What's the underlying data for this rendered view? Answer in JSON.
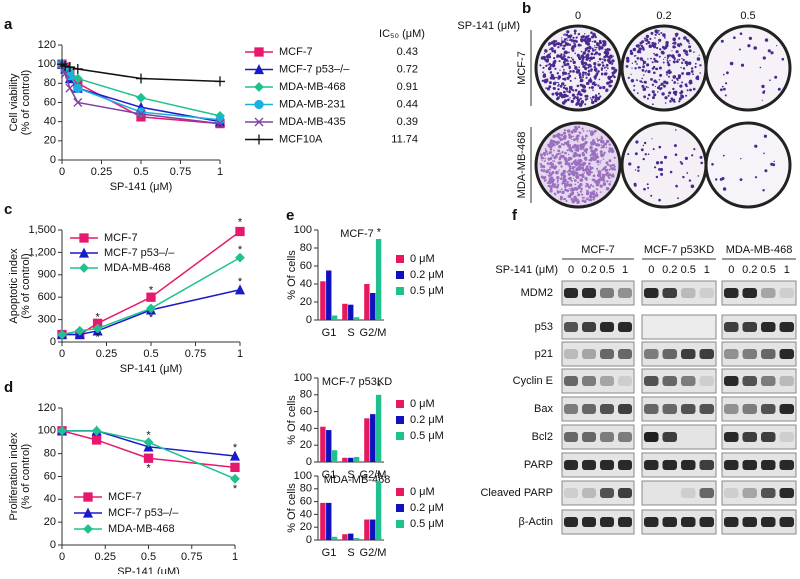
{
  "chart_data": [
    {
      "type": "line",
      "panel": "a",
      "xlabel": "SP-141 (μM)",
      "ylabel": [
        "Cell viability",
        "(% of control)"
      ],
      "x": [
        0,
        0.02,
        0.05,
        0.1,
        0.5,
        1
      ],
      "xlim": [
        0,
        1
      ],
      "xticks": [
        0,
        0.25,
        0.5,
        0.75,
        1
      ],
      "ylim": [
        0,
        120
      ],
      "yticks": [
        0,
        20,
        40,
        60,
        80,
        100,
        120
      ],
      "legend": "right",
      "legend_value_header": "IC₅₀ (μM)",
      "series": [
        {
          "name": "MCF-7",
          "color": "#e6196e",
          "marker": "square",
          "values": [
            100,
            97,
            90,
            80,
            45,
            38
          ],
          "ic50": 0.43
        },
        {
          "name": "MCF-7 p53–/–",
          "color": "#1a1acc",
          "marker": "triangle",
          "values": [
            100,
            95,
            85,
            75,
            55,
            40
          ],
          "ic50": 0.72
        },
        {
          "name": "MDA-MB-468",
          "color": "#20c090",
          "marker": "diamond",
          "values": [
            100,
            97,
            92,
            85,
            65,
            46
          ],
          "ic50": 0.91
        },
        {
          "name": "MDA-MB-231",
          "color": "#1ab0e0",
          "marker": "circle",
          "values": [
            100,
            95,
            88,
            75,
            50,
            42
          ],
          "ic50": 0.44
        },
        {
          "name": "MDA-MB-435",
          "color": "#8040a0",
          "marker": "x",
          "values": [
            100,
            90,
            75,
            60,
            48,
            38
          ],
          "ic50": 0.39
        },
        {
          "name": "MCF10A",
          "color": "#111111",
          "marker": "plus",
          "values": [
            100,
            98,
            97,
            95,
            85,
            82
          ],
          "ic50": 11.74
        }
      ]
    },
    {
      "type": "line",
      "panel": "c",
      "xlabel": "SP-141 (μM)",
      "ylabel": [
        "Apoptotic index",
        "(% of control)"
      ],
      "x": [
        0,
        0.1,
        0.2,
        0.5,
        1
      ],
      "xlim": [
        0,
        1
      ],
      "xticks": [
        0,
        0.25,
        0.5,
        0.75,
        1
      ],
      "ylim": [
        0,
        1500
      ],
      "yticks": [
        0,
        300,
        600,
        900,
        {
          "value": 1200,
          "label": "1,200"
        },
        {
          "value": 1500,
          "label": "1,500"
        }
      ],
      "legend": "upper left",
      "series": [
        {
          "name": "MCF-7",
          "color": "#e6196e",
          "marker": "square",
          "values": [
            100,
            100,
            250,
            600,
            1480
          ]
        },
        {
          "name": "MCF-7 p53–/–",
          "color": "#1a1acc",
          "marker": "triangle",
          "values": [
            100,
            100,
            150,
            430,
            700
          ]
        },
        {
          "name": "MDA-MB-468",
          "color": "#20c090",
          "marker": "diamond",
          "values": [
            100,
            150,
            180,
            450,
            1130
          ]
        }
      ],
      "annotations": [
        {
          "text": "*",
          "x": 0.2,
          "y": 330
        },
        {
          "text": "*",
          "x": 0.2,
          "y": 60
        },
        {
          "text": "*",
          "x": 0.5,
          "y": 690
        },
        {
          "text": "*",
          "x": 0.5,
          "y": 320
        },
        {
          "text": "*",
          "x": 1,
          "y": 1600
        },
        {
          "text": "*",
          "x": 1,
          "y": 1230
        },
        {
          "text": "*",
          "x": 1,
          "y": 800
        }
      ]
    },
    {
      "type": "line",
      "panel": "d",
      "xlabel": "SP-141 (μM)",
      "ylabel": [
        "Proliferation index",
        "(% of control)"
      ],
      "x": [
        0,
        0.2,
        0.5,
        1
      ],
      "xlim": [
        0,
        1
      ],
      "xticks": [
        0,
        0.25,
        0.5,
        0.75,
        1
      ],
      "ylim": [
        0,
        120
      ],
      "yticks": [
        0,
        20,
        40,
        60,
        80,
        100,
        120
      ],
      "legend": "lower left",
      "series": [
        {
          "name": "MCF-7",
          "color": "#e6196e",
          "marker": "square",
          "values": [
            100,
            92,
            76,
            68
          ]
        },
        {
          "name": "MCF-7 p53–/–",
          "color": "#1a1acc",
          "marker": "triangle",
          "values": [
            100,
            100,
            86,
            78
          ]
        },
        {
          "name": "MDA-MB-468",
          "color": "#20c090",
          "marker": "diamond",
          "values": [
            100,
            100,
            90,
            58
          ]
        }
      ],
      "annotations": [
        {
          "text": "*",
          "x": 0.5,
          "y": 96
        },
        {
          "text": "*",
          "x": 0.5,
          "y": 67
        },
        {
          "text": "*",
          "x": 1,
          "y": 85
        },
        {
          "text": "*",
          "x": 1,
          "y": 49
        }
      ]
    },
    {
      "type": "bar",
      "panel": "e",
      "title": "MCF-7",
      "ylabel": "% Of cells",
      "categories": [
        "G1",
        "S",
        "G2/M"
      ],
      "ylim": [
        0,
        100
      ],
      "yticks": [
        0,
        20,
        40,
        60,
        80,
        100
      ],
      "series": [
        {
          "name": "0 μM",
          "color": "#e6195e",
          "values": [
            43,
            18,
            40
          ]
        },
        {
          "name": "0.2 μM",
          "color": "#1010c0",
          "values": [
            55,
            17,
            30
          ]
        },
        {
          "name": "0.5 μM",
          "color": "#20c090",
          "values": [
            5,
            3,
            90
          ]
        }
      ],
      "annotations": [
        {
          "text": "*",
          "x": "G2/M",
          "y": 97
        }
      ]
    },
    {
      "type": "bar",
      "title": "MCF-7 p53KD",
      "ylabel": "% Of cells",
      "categories": [
        "G1",
        "S",
        "G2/M"
      ],
      "ylim": [
        0,
        100
      ],
      "yticks": [
        0,
        20,
        40,
        60,
        80,
        100
      ],
      "series": [
        {
          "name": "0 μM",
          "color": "#e6195e",
          "values": [
            42,
            5,
            52
          ]
        },
        {
          "name": "0.2 μM",
          "color": "#1010c0",
          "values": [
            38,
            5,
            57
          ]
        },
        {
          "name": "0.5 μM",
          "color": "#20c090",
          "values": [
            14,
            6,
            80
          ]
        }
      ],
      "annotations": [
        {
          "text": "*",
          "x": "G2/M",
          "y": 89
        }
      ]
    },
    {
      "type": "bar",
      "title": "MDA-MB-468",
      "ylabel": "% Of cells",
      "categories": [
        "G1",
        "S",
        "G2/M"
      ],
      "ylim": [
        0,
        100
      ],
      "yticks": [
        0,
        20,
        40,
        60,
        80,
        100
      ],
      "series": [
        {
          "name": "0 μM",
          "color": "#e6195e",
          "values": [
            58,
            9,
            32
          ]
        },
        {
          "name": "0.2 μM",
          "color": "#1010c0",
          "values": [
            58,
            10,
            32
          ]
        },
        {
          "name": "0.5 μM",
          "color": "#20c090",
          "values": [
            5,
            3,
            92
          ]
        }
      ],
      "annotations": [
        {
          "text": "*",
          "x": "G2/M",
          "y": 99
        }
      ]
    }
  ],
  "colony_assay": {
    "panel": "b",
    "dose_label": "SP-141 (μM)",
    "doses": [
      0,
      0.2,
      0.5
    ],
    "cell_lines": [
      "MCF-7",
      "MDA-MB-468"
    ]
  },
  "western_blot": {
    "panel": "f",
    "cell_lines": [
      "MCF-7",
      "MCF-7 p53KD",
      "MDA-MB-468"
    ],
    "dose_label": "SP-141 (μM)",
    "doses": [
      0,
      0.2,
      0.5,
      1
    ],
    "proteins": [
      "MDM2",
      "p53",
      "p21",
      "Cyclin E",
      "Bax",
      "Bcl2",
      "PARP",
      "Cleaved PARP",
      "β-Actin"
    ]
  }
}
